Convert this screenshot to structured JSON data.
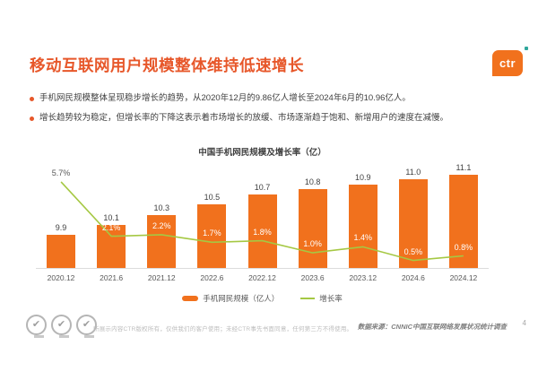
{
  "header": {
    "title": "移动互联网用户规模整体维持低速增长"
  },
  "logo": {
    "text": "ctr"
  },
  "bullets": [
    "手机网民规模整体呈现稳步增长的趋势，从2020年12月的9.86亿人增长至2024年6月的10.96亿人。",
    "增长趋势较为稳定，但增长率的下降这表示着市场增长的放缓、市场逐渐趋于饱和、新增用户的速度在减慢。"
  ],
  "chart_data": {
    "type": "bar",
    "combo": "bar+line",
    "title": "中国手机网民规模及增长率（亿）",
    "categories": [
      "2020.12",
      "2021.6",
      "2021.12",
      "2022.6",
      "2022.12",
      "2023.6",
      "2023.12",
      "2024.6",
      "2024.12"
    ],
    "series": [
      {
        "name": "手机网民规模（亿人）",
        "type": "bar",
        "values": [
          9.9,
          10.1,
          10.3,
          10.5,
          10.7,
          10.8,
          10.9,
          11.0,
          11.1
        ],
        "labels": [
          "9.9",
          "10.1",
          "10.3",
          "10.5",
          "10.7",
          "10.8",
          "10.9",
          "11.0",
          "11.1"
        ]
      },
      {
        "name": "增长率",
        "type": "line",
        "values": [
          5.7,
          2.1,
          2.2,
          1.7,
          1.8,
          1.0,
          1.4,
          0.5,
          0.8
        ],
        "labels": [
          "5.7%",
          "2.1%",
          "2.2%",
          "1.7%",
          "1.8%",
          "1.0%",
          "1.4%",
          "0.5%",
          "0.8%"
        ]
      }
    ],
    "bar_axis_range": [
      9.25,
      11.25
    ],
    "line_axis_range": [
      0,
      6.7
    ],
    "legend_position": "bottom",
    "grid": false
  },
  "footer": {
    "disclaimer": "所展示内容CTR版权所有，仅供我们的客户使用；未经CTR事先书面同意，任何第三方不得使用。",
    "source": "数据来源：CNNIC中国互联网络发展状况统计调查",
    "page_number": "4"
  },
  "colors": {
    "accent_orange": "#F1711D",
    "title_orange": "#E7572A",
    "line_green": "#A5C843",
    "teal_dot": "#2FA79C",
    "text_dark": "#404040",
    "text_gray": "#595959",
    "footer_gray": "#BDBDBD"
  }
}
